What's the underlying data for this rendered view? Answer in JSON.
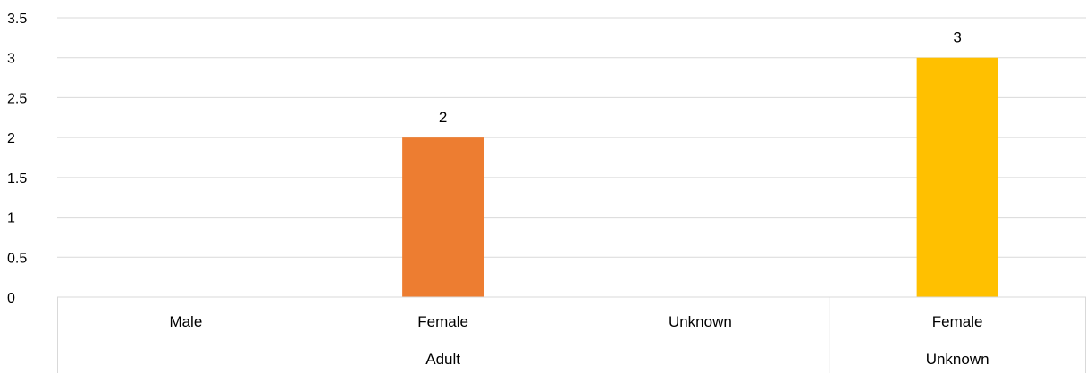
{
  "chart_data": {
    "type": "bar",
    "title": "",
    "xlabel": "",
    "ylabel": "",
    "ylim": [
      0,
      3.5
    ],
    "y_ticks": [
      "0",
      "0.5",
      "1",
      "1.5",
      "2",
      "2.5",
      "3",
      "3.5"
    ],
    "grid": true,
    "legend": "none",
    "categories": [
      "Male",
      "Female",
      "Unknown",
      "Female"
    ],
    "groups": [
      {
        "label": "Adult",
        "categories": [
          "Male",
          "Female",
          "Unknown"
        ]
      },
      {
        "label": "Unknown",
        "categories": [
          "Female"
        ]
      }
    ],
    "values": [
      0,
      2,
      0,
      3
    ],
    "data_labels": [
      "",
      "2",
      "",
      "3"
    ],
    "colors": [
      "#4472C4",
      "#ED7D31",
      "#A5A5A5",
      "#FFC000"
    ]
  }
}
